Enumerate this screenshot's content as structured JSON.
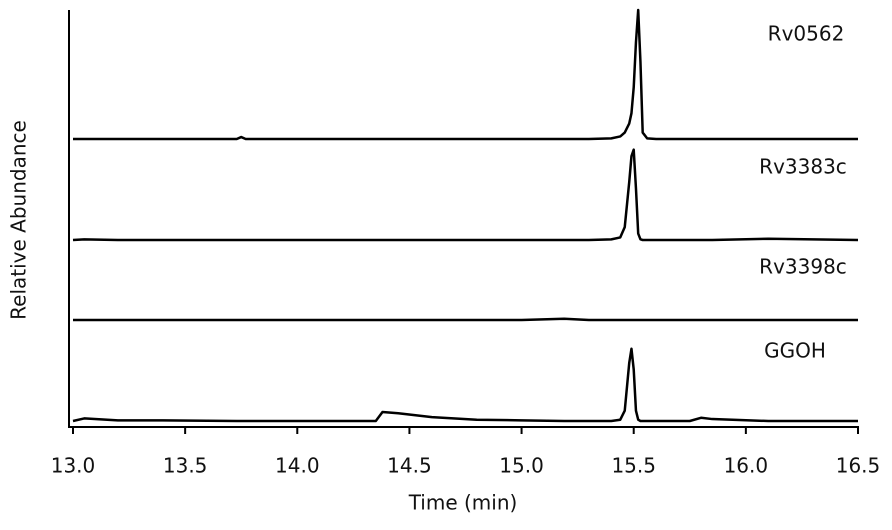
{
  "chart_data": {
    "type": "line",
    "xlabel": "Time (min)",
    "ylabel": "Relative Abundance",
    "xlim": [
      13.0,
      16.5
    ],
    "xticks": [
      {
        "value": 13.0,
        "label": "13.0"
      },
      {
        "value": 13.5,
        "label": "13.5"
      },
      {
        "value": 14.0,
        "label": "14.0"
      },
      {
        "value": 14.5,
        "label": "14.5"
      },
      {
        "value": 15.0,
        "label": "15.0"
      },
      {
        "value": 15.5,
        "label": "15.5"
      },
      {
        "value": 16.0,
        "label": "16.0"
      },
      {
        "value": 16.5,
        "label": "16.5"
      }
    ],
    "x": [
      13.0,
      13.05,
      13.2,
      13.4,
      13.73,
      13.75,
      13.77,
      14.0,
      14.35,
      14.38,
      14.45,
      14.6,
      14.8,
      15.0,
      15.19,
      15.3,
      15.4,
      15.44,
      15.46,
      15.48,
      15.49,
      15.5,
      15.51,
      15.52,
      15.53,
      15.54,
      15.56,
      15.6,
      15.75,
      15.8,
      15.85,
      16.1,
      16.5
    ],
    "series": [
      {
        "name": "Rv0562",
        "color": "#000000",
        "values": [
          0,
          0,
          0,
          0,
          0,
          1.5,
          0,
          0,
          0,
          0,
          0,
          0,
          0,
          0,
          0,
          0,
          0.5,
          2,
          5,
          12,
          20,
          40,
          75,
          100,
          60,
          5,
          0.5,
          0,
          0,
          0,
          0,
          0,
          0
        ]
      },
      {
        "name": "Rv3383c",
        "color": "#000000",
        "values": [
          0,
          0.5,
          0,
          0,
          0,
          0,
          0,
          0,
          0,
          0,
          0,
          0,
          0,
          0,
          0,
          0,
          0.5,
          2,
          10,
          45,
          65,
          70,
          40,
          5,
          0.5,
          0,
          0,
          0,
          0,
          0,
          0,
          1,
          0
        ]
      },
      {
        "name": "Rv3398c",
        "color": "#000000",
        "values": [
          0,
          0,
          0,
          0,
          0,
          0,
          0,
          0,
          0,
          0,
          0,
          0,
          0,
          0,
          1,
          0,
          0,
          0,
          0,
          0,
          0,
          0,
          0,
          0,
          0,
          0,
          0,
          0,
          0,
          0,
          0,
          0,
          0
        ]
      },
      {
        "name": "GGOH",
        "color": "#000000",
        "values": [
          0,
          2,
          0.5,
          0.5,
          0,
          0,
          0,
          0,
          0,
          7,
          6,
          3,
          1,
          0.5,
          0,
          0,
          0,
          1,
          8,
          45,
          56,
          40,
          8,
          1,
          0,
          0,
          0,
          0,
          0,
          2.5,
          1.5,
          0,
          0
        ]
      }
    ]
  }
}
